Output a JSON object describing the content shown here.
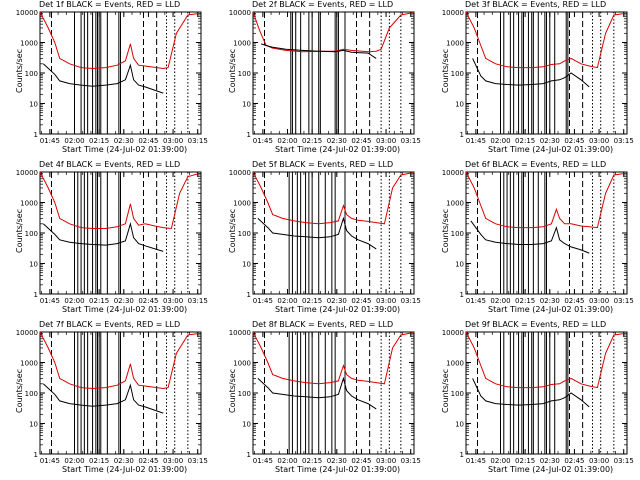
{
  "figure": {
    "x_ticks": [
      "01:45",
      "02:00",
      "02:15",
      "02:30",
      "02:45",
      "03:00",
      "03:15"
    ],
    "y_ticks": [
      "1",
      "10",
      "100",
      "1000",
      "10000"
    ],
    "colors": {
      "events": "#000000",
      "lld": "#dd0000",
      "axes": "#000000"
    }
  },
  "chart_data": [
    {
      "type": "line",
      "title": "Det 1f BLACK = Events, RED = LLD",
      "xlabel": "Start Time (24-Jul-02 01:39:00)",
      "ylabel": "Counts/sec",
      "xlim": [
        0,
        98
      ],
      "ylim": [
        1,
        10000
      ],
      "yscale": "log",
      "series": [
        {
          "name": "LLD",
          "color": "red",
          "x": [
            0,
            5,
            9,
            12,
            18,
            25,
            32,
            40,
            47,
            52,
            55,
            57,
            60,
            64,
            75,
            78,
            83,
            90,
            97
          ],
          "y": [
            10000,
            3000,
            1000,
            300,
            200,
            150,
            140,
            150,
            180,
            250,
            900,
            300,
            180,
            170,
            140,
            150,
            2000,
            8000,
            9000
          ]
        },
        {
          "name": "Events",
          "color": "black",
          "x": [
            2,
            9,
            12,
            18,
            25,
            32,
            40,
            47,
            52,
            55,
            57,
            60,
            64,
            75
          ],
          "y": [
            200,
            90,
            55,
            45,
            40,
            37,
            40,
            45,
            60,
            180,
            60,
            40,
            35,
            22
          ]
        }
      ],
      "vlines_solid": [
        21,
        25,
        27,
        29,
        32,
        34,
        35,
        36,
        37,
        41,
        48,
        49
      ],
      "vlines_dashed": [
        7,
        63,
        71
      ],
      "vlines_dotted": [
        77,
        82,
        90
      ]
    },
    {
      "type": "line",
      "title": "Det 2f BLACK = Events, RED = LLD",
      "xlabel": "Start Time (24-Jul-02 01:39:00)",
      "ylabel": "Counts/sec",
      "xlim": [
        0,
        98
      ],
      "ylim": [
        1,
        10000
      ],
      "yscale": "log",
      "series": [
        {
          "name": "LLD",
          "color": "red",
          "x": [
            0,
            4,
            8,
            12,
            20,
            30,
            40,
            50,
            55,
            60,
            70,
            75,
            78,
            83,
            90,
            97
          ],
          "y": [
            10000,
            2500,
            800,
            650,
            550,
            500,
            520,
            520,
            600,
            550,
            500,
            520,
            600,
            3000,
            8000,
            9500
          ]
        },
        {
          "name": "Events",
          "color": "black",
          "x": [
            5,
            8,
            12,
            20,
            30,
            40,
            50,
            55,
            60,
            70,
            75
          ],
          "y": [
            900,
            800,
            700,
            600,
            550,
            520,
            500,
            550,
            480,
            450,
            300
          ]
        }
      ],
      "vlines_solid": [
        23,
        24,
        26,
        29,
        34,
        36,
        40,
        41,
        50,
        51,
        52,
        56
      ],
      "vlines_dashed": [
        7,
        63,
        71
      ],
      "vlines_dotted": [
        78,
        83,
        90
      ]
    },
    {
      "type": "line",
      "title": "Det 3f BLACK = Events, RED = LLD",
      "xlabel": "Start Time (24-Jul-02 01:39:00)",
      "ylabel": "Counts/sec",
      "xlim": [
        0,
        98
      ],
      "ylim": [
        1,
        10000
      ],
      "yscale": "log",
      "series": [
        {
          "name": "LLD",
          "color": "red",
          "x": [
            0,
            5,
            9,
            12,
            18,
            25,
            32,
            40,
            47,
            52,
            57,
            60,
            64,
            70,
            75,
            80,
            85,
            90,
            97
          ],
          "y": [
            10000,
            3000,
            800,
            300,
            200,
            160,
            150,
            150,
            160,
            190,
            200,
            250,
            300,
            200,
            170,
            150,
            2000,
            8000,
            9000
          ]
        },
        {
          "name": "Events",
          "color": "black",
          "x": [
            4,
            9,
            12,
            18,
            25,
            32,
            40,
            47,
            52,
            57,
            60,
            64,
            70,
            75
          ],
          "y": [
            300,
            80,
            55,
            45,
            42,
            40,
            42,
            45,
            55,
            60,
            70,
            100,
            60,
            35
          ]
        }
      ],
      "vlines_solid": [
        21,
        23,
        27,
        29,
        32,
        34,
        35,
        38,
        40,
        41,
        44,
        48,
        49,
        51,
        54,
        61,
        62
      ],
      "vlines_dashed": [
        7,
        63,
        71
      ],
      "vlines_dotted": [
        77,
        82,
        90
      ]
    },
    {
      "type": "line",
      "title": "Det 4f BLACK = Events, RED = LLD",
      "xlabel": "Start Time (24-Jul-02 01:39:00)",
      "ylabel": "Counts/sec",
      "xlim": [
        0,
        98
      ],
      "ylim": [
        1,
        10000
      ],
      "yscale": "log",
      "series": [
        {
          "name": "LLD",
          "color": "red",
          "x": [
            0,
            5,
            9,
            12,
            18,
            25,
            32,
            40,
            47,
            52,
            55,
            57,
            60,
            64,
            70,
            75,
            80,
            85,
            90,
            97
          ],
          "y": [
            10000,
            3000,
            1000,
            300,
            200,
            150,
            140,
            140,
            160,
            200,
            900,
            300,
            180,
            200,
            170,
            150,
            140,
            2000,
            7000,
            9000
          ]
        },
        {
          "name": "Events",
          "color": "black",
          "x": [
            2,
            9,
            12,
            18,
            25,
            32,
            40,
            47,
            52,
            55,
            57,
            60,
            64,
            70,
            75
          ],
          "y": [
            200,
            90,
            60,
            50,
            45,
            42,
            40,
            45,
            55,
            200,
            70,
            45,
            38,
            30,
            25
          ]
        }
      ],
      "vlines_solid": [
        21,
        23,
        25,
        27,
        29,
        32,
        34,
        35,
        37,
        41,
        48,
        49
      ],
      "vlines_dashed": [
        7,
        63,
        71
      ],
      "vlines_dotted": [
        77,
        82,
        90
      ]
    },
    {
      "type": "line",
      "title": "Det 5f BLACK = Events, RED = LLD",
      "xlabel": "Start Time (24-Jul-02 01:39:00)",
      "ylabel": "Counts/sec",
      "xlim": [
        0,
        98
      ],
      "ylim": [
        1,
        10000
      ],
      "yscale": "log",
      "series": [
        {
          "name": "LLD",
          "color": "red",
          "x": [
            0,
            5,
            9,
            12,
            18,
            25,
            32,
            40,
            47,
            52,
            55,
            57,
            60,
            64,
            70,
            75,
            80,
            85,
            90,
            97
          ],
          "y": [
            10000,
            3000,
            1000,
            400,
            300,
            250,
            220,
            200,
            220,
            250,
            800,
            400,
            300,
            260,
            240,
            220,
            200,
            3000,
            8000,
            9500
          ]
        },
        {
          "name": "Events",
          "color": "black",
          "x": [
            3,
            9,
            12,
            18,
            25,
            32,
            40,
            47,
            52,
            55,
            57,
            60,
            64,
            70,
            75
          ],
          "y": [
            300,
            150,
            100,
            90,
            80,
            75,
            70,
            75,
            90,
            300,
            120,
            80,
            60,
            45,
            30
          ]
        }
      ],
      "vlines_solid": [
        22,
        24,
        27,
        29,
        32,
        34,
        36,
        40,
        44,
        48,
        50,
        56
      ],
      "vlines_dashed": [
        7,
        63,
        71
      ],
      "vlines_dotted": [
        78,
        83,
        90
      ]
    },
    {
      "type": "line",
      "title": "Det 6f BLACK = Events, RED = LLD",
      "xlabel": "Start Time (24-Jul-02 01:39:00)",
      "ylabel": "Counts/sec",
      "xlim": [
        0,
        98
      ],
      "ylim": [
        1,
        10000
      ],
      "yscale": "log",
      "series": [
        {
          "name": "LLD",
          "color": "red",
          "x": [
            0,
            5,
            9,
            12,
            18,
            25,
            32,
            40,
            47,
            52,
            55,
            57,
            60,
            64,
            70,
            75,
            80,
            85,
            90,
            97
          ],
          "y": [
            10000,
            3000,
            800,
            300,
            200,
            160,
            150,
            150,
            160,
            200,
            600,
            300,
            200,
            200,
            170,
            160,
            150,
            2000,
            8000,
            9000
          ]
        },
        {
          "name": "Events",
          "color": "black",
          "x": [
            3,
            9,
            12,
            18,
            25,
            32,
            40,
            47,
            52,
            55,
            57,
            60,
            64,
            70,
            75
          ],
          "y": [
            250,
            90,
            60,
            50,
            45,
            42,
            42,
            45,
            55,
            150,
            60,
            45,
            35,
            28,
            22
          ]
        }
      ],
      "vlines_solid": [
        21,
        23,
        25,
        27,
        29,
        32,
        34,
        35,
        38,
        41,
        44,
        48,
        49
      ],
      "vlines_dashed": [
        7,
        63,
        71
      ],
      "vlines_dotted": [
        77,
        82,
        90
      ]
    },
    {
      "type": "line",
      "title": "Det 7f BLACK = Events, RED = LLD",
      "xlabel": "Start Time (24-Jul-02 01:39:00)",
      "ylabel": "Counts/sec",
      "xlim": [
        0,
        98
      ],
      "ylim": [
        1,
        10000
      ],
      "yscale": "log",
      "series": [
        {
          "name": "LLD",
          "color": "red",
          "x": [
            0,
            5,
            9,
            12,
            18,
            25,
            32,
            40,
            47,
            52,
            55,
            57,
            60,
            64,
            75,
            78,
            83,
            90,
            97
          ],
          "y": [
            10000,
            3000,
            1000,
            300,
            200,
            150,
            140,
            150,
            180,
            250,
            900,
            300,
            180,
            170,
            140,
            150,
            2000,
            8000,
            9000
          ]
        },
        {
          "name": "Events",
          "color": "black",
          "x": [
            2,
            9,
            12,
            18,
            25,
            32,
            40,
            47,
            52,
            55,
            57,
            60,
            64,
            75
          ],
          "y": [
            200,
            90,
            55,
            45,
            40,
            37,
            40,
            45,
            60,
            180,
            60,
            40,
            35,
            22
          ]
        }
      ],
      "vlines_solid": [
        21,
        23,
        25,
        27,
        29,
        32,
        34,
        35,
        36,
        37,
        41,
        48,
        49
      ],
      "vlines_dashed": [
        7,
        63,
        71
      ],
      "vlines_dotted": [
        77,
        82,
        90
      ]
    },
    {
      "type": "line",
      "title": "Det 8f BLACK = Events, RED = LLD",
      "xlabel": "Start Time (24-Jul-02 01:39:00)",
      "ylabel": "Counts/sec",
      "xlim": [
        0,
        98
      ],
      "ylim": [
        1,
        10000
      ],
      "yscale": "log",
      "series": [
        {
          "name": "LLD",
          "color": "red",
          "x": [
            0,
            5,
            9,
            12,
            18,
            25,
            32,
            40,
            47,
            52,
            55,
            57,
            60,
            64,
            70,
            75,
            80,
            85,
            90,
            97
          ],
          "y": [
            10000,
            3000,
            1000,
            400,
            300,
            250,
            220,
            200,
            220,
            250,
            800,
            400,
            300,
            260,
            240,
            220,
            200,
            3000,
            8000,
            9500
          ]
        },
        {
          "name": "Events",
          "color": "black",
          "x": [
            3,
            9,
            12,
            18,
            25,
            32,
            40,
            47,
            52,
            55,
            57,
            60,
            64,
            70,
            75
          ],
          "y": [
            300,
            150,
            100,
            90,
            80,
            75,
            70,
            75,
            90,
            300,
            120,
            80,
            60,
            45,
            30
          ]
        }
      ],
      "vlines_solid": [
        22,
        24,
        27,
        29,
        32,
        34,
        36,
        40,
        44,
        48,
        50,
        56
      ],
      "vlines_dashed": [
        7,
        63,
        71
      ],
      "vlines_dotted": [
        78,
        83,
        90
      ]
    },
    {
      "type": "line",
      "title": "Det 9f BLACK = Events, RED = LLD",
      "xlabel": "Start Time (24-Jul-02 01:39:00)",
      "ylabel": "Counts/sec",
      "xlim": [
        0,
        98
      ],
      "ylim": [
        1,
        10000
      ],
      "yscale": "log",
      "series": [
        {
          "name": "LLD",
          "color": "red",
          "x": [
            0,
            5,
            9,
            12,
            18,
            25,
            32,
            40,
            47,
            52,
            57,
            60,
            64,
            70,
            75,
            80,
            85,
            90,
            97
          ],
          "y": [
            10000,
            3000,
            800,
            300,
            200,
            160,
            150,
            150,
            160,
            190,
            200,
            250,
            300,
            200,
            170,
            150,
            2000,
            8000,
            9000
          ]
        },
        {
          "name": "Events",
          "color": "black",
          "x": [
            4,
            9,
            12,
            18,
            25,
            32,
            40,
            47,
            52,
            57,
            60,
            64,
            70,
            75
          ],
          "y": [
            300,
            80,
            55,
            45,
            42,
            40,
            42,
            45,
            55,
            60,
            70,
            100,
            60,
            35
          ]
        }
      ],
      "vlines_solid": [
        21,
        23,
        27,
        29,
        32,
        34,
        35,
        38,
        40,
        41,
        44,
        48,
        49,
        51,
        54,
        61,
        62
      ],
      "vlines_dashed": [
        7,
        63,
        71
      ],
      "vlines_dotted": [
        77,
        82,
        90
      ]
    }
  ]
}
